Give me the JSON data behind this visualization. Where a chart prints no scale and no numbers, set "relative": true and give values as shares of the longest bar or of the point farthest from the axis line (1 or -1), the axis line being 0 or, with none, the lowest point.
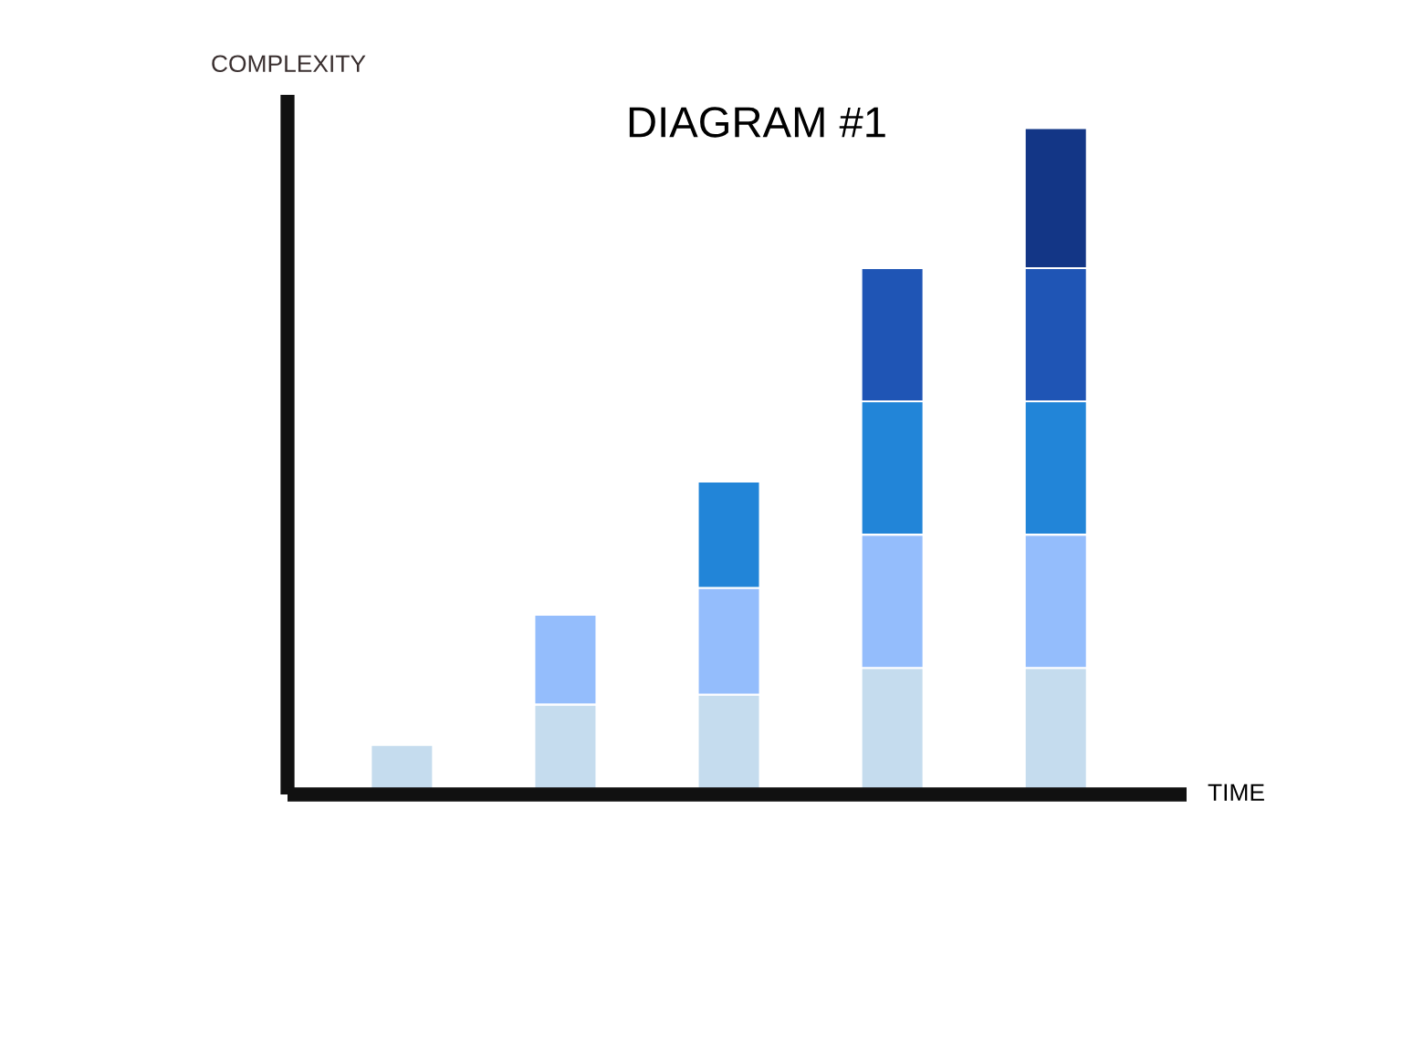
{
  "chart_data": {
    "type": "bar",
    "title": "DIAGRAM #1",
    "xlabel": "TIME",
    "ylabel": "COMPLEXITY",
    "relative": true,
    "stacked": true,
    "grid": false,
    "legend": false,
    "categories": [
      null,
      null,
      null,
      null,
      null
    ],
    "series": [
      {
        "color": "#c5dcee",
        "values": [
          0.075,
          0.135,
          0.15,
          0.19,
          0.19
        ]
      },
      {
        "color": "#94bdfc",
        "values": [
          null,
          0.135,
          0.16,
          0.2,
          0.2
        ]
      },
      {
        "color": "#2285d8",
        "values": [
          null,
          null,
          0.16,
          0.2,
          0.2
        ]
      },
      {
        "color": "#1f55b5",
        "values": [
          null,
          null,
          null,
          0.2,
          0.2
        ]
      },
      {
        "color": "#133686",
        "values": [
          null,
          null,
          null,
          null,
          0.21
        ]
      }
    ]
  }
}
